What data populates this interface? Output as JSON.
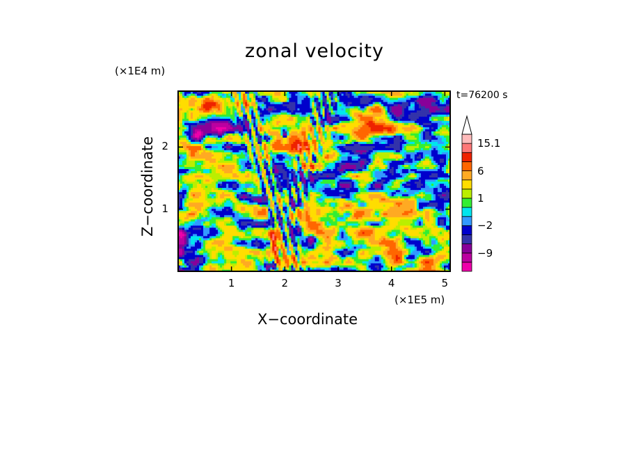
{
  "chart_data": {
    "type": "heatmap",
    "title": "zonal velocity",
    "time_label": "t=76200 s",
    "xlabel": "X−coordinate",
    "ylabel": "Z−coordinate",
    "x_unit": "(×1E5 m)",
    "y_unit": "(×1E4 m)",
    "xlim": [
      0,
      5.1
    ],
    "ylim": [
      0,
      2.9
    ],
    "x_ticks": [
      {
        "label": "1",
        "value": 1
      },
      {
        "label": "2",
        "value": 2
      },
      {
        "label": "3",
        "value": 3
      },
      {
        "label": "4",
        "value": 4
      },
      {
        "label": "5",
        "value": 5
      }
    ],
    "y_ticks": [
      {
        "label": "1",
        "value": 1
      },
      {
        "label": "2",
        "value": 2
      }
    ],
    "colorbar": {
      "levels": [
        -15,
        -12,
        -9,
        -6,
        -4,
        -2,
        -1,
        0,
        1,
        2,
        4,
        6,
        9,
        12,
        15.1
      ],
      "colors": [
        "#ee00aa",
        "#bb00a0",
        "#880099",
        "#3333aa",
        "#0000cc",
        "#3399ff",
        "#00e5ee",
        "#33ee33",
        "#bbee00",
        "#ffdd00",
        "#ffaa22",
        "#ff6600",
        "#ee2200",
        "#ff7777",
        "#ffbbbb"
      ],
      "tick_labels": [
        {
          "label": "15.1",
          "value": 15.1
        },
        {
          "label": "6",
          "value": 6
        },
        {
          "label": "1",
          "value": 1
        },
        {
          "label": "−2",
          "value": -2
        },
        {
          "label": "−9",
          "value": -9
        }
      ],
      "extend": "max"
    },
    "features": [
      {
        "x": 0.7,
        "z": 2.3,
        "amp": -14,
        "sx": 0.35,
        "sz": 0.12
      },
      {
        "x": 0.35,
        "z": 2.2,
        "amp": -10,
        "sx": 0.12,
        "sz": 0.08
      },
      {
        "x": 0.4,
        "z": 1.9,
        "amp": 6,
        "sx": 0.5,
        "sz": 0.15
      },
      {
        "x": 0.5,
        "z": 2.65,
        "amp": 6,
        "sx": 0.5,
        "sz": 0.12
      },
      {
        "x": 0.2,
        "z": 1.45,
        "amp": 4,
        "sx": 0.4,
        "sz": 0.2
      },
      {
        "x": 1.5,
        "z": 1.15,
        "amp": -12,
        "sx": 0.25,
        "sz": 0.1
      },
      {
        "x": 1.2,
        "z": 1.2,
        "amp": -7,
        "sx": 0.12,
        "sz": 0.07
      },
      {
        "x": 1.05,
        "z": 0.55,
        "amp": 3.5,
        "sx": 0.4,
        "sz": 0.3
      },
      {
        "x": 0.6,
        "z": 0.2,
        "amp": -2.5,
        "sx": 0.5,
        "sz": 0.2
      },
      {
        "x": 0.05,
        "z": 0.5,
        "amp": -10,
        "sx": 0.1,
        "sz": 0.2
      },
      {
        "x": 1.8,
        "z": 0.45,
        "amp": 9,
        "sx": 0.08,
        "sz": 0.3
      },
      {
        "x": 1.75,
        "z": 0.12,
        "amp": -13,
        "sx": 0.08,
        "sz": 0.08
      },
      {
        "x": 2.0,
        "z": 2.2,
        "amp": -12,
        "sx": 0.06,
        "sz": 0.06
      },
      {
        "x": 2.3,
        "z": 2.0,
        "amp": 6,
        "sx": 0.3,
        "sz": 0.3
      },
      {
        "x": 2.5,
        "z": 0.5,
        "amp": -9,
        "sx": 0.07,
        "sz": 0.12
      },
      {
        "x": 3.4,
        "z": 0.8,
        "amp": 4.5,
        "sx": 0.8,
        "sz": 0.2
      },
      {
        "x": 4.0,
        "z": 1.1,
        "amp": 6.5,
        "sx": 0.5,
        "sz": 0.12
      },
      {
        "x": 3.1,
        "z": 1.7,
        "amp": -6,
        "sx": 0.25,
        "sz": 0.1
      },
      {
        "x": 4.2,
        "z": 1.4,
        "amp": -4,
        "sx": 0.4,
        "sz": 0.08
      },
      {
        "x": 3.8,
        "z": 2.3,
        "amp": 7.5,
        "sx": 0.35,
        "sz": 0.15
      },
      {
        "x": 3.3,
        "z": 2.55,
        "amp": 4,
        "sx": 0.4,
        "sz": 0.15
      },
      {
        "x": 4.6,
        "z": 2.6,
        "amp": -6,
        "sx": 0.6,
        "sz": 0.15
      },
      {
        "x": 4.95,
        "z": 1.75,
        "amp": -7,
        "sx": 0.12,
        "sz": 0.2
      },
      {
        "x": 4.8,
        "z": 0.2,
        "amp": 6,
        "sx": 0.3,
        "sz": 0.15
      },
      {
        "x": 4.2,
        "z": 0.3,
        "amp": 3.5,
        "sx": 0.5,
        "sz": 0.2
      },
      {
        "x": 4.6,
        "z": 0.7,
        "amp": -3.5,
        "sx": 0.3,
        "sz": 0.3
      },
      {
        "x": 2.9,
        "z": 2.0,
        "amp": 3,
        "sx": 0.4,
        "sz": 0.3
      },
      {
        "x": 1.3,
        "z": 2.6,
        "amp": 5,
        "sx": 0.3,
        "sz": 0.15
      }
    ]
  }
}
